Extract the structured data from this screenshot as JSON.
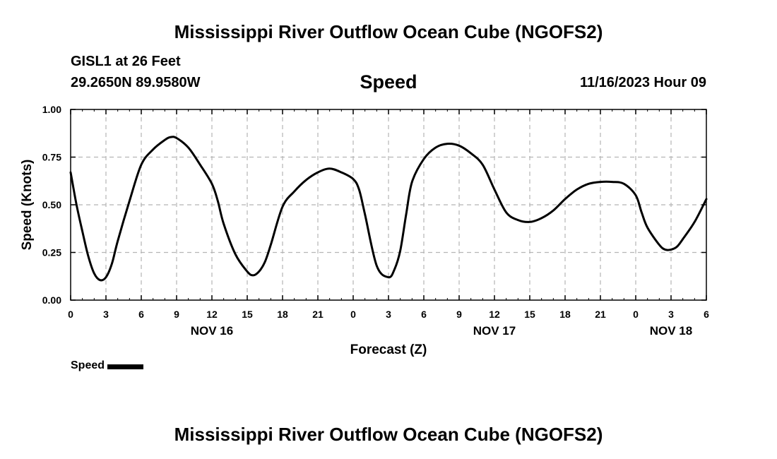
{
  "header": {
    "title": "Mississippi River Outflow Ocean Cube (NGOFS2)",
    "station": "GISL1 at 26 Feet",
    "coordinates": "29.2650N  89.9580W",
    "variable": "Speed",
    "datetime": "11/16/2023 Hour 09"
  },
  "footer": {
    "title": "Mississippi River Outflow Ocean Cube (NGOFS2)"
  },
  "chart_data": {
    "type": "line",
    "title": "Speed",
    "xlabel": "Forecast (Z)",
    "ylabel": "Speed (Knots)",
    "xlim": [
      0,
      54
    ],
    "ylim": [
      0,
      1
    ],
    "grid": true,
    "legend_position": "bottom-left",
    "x_tick_values": [
      0,
      3,
      6,
      9,
      12,
      15,
      18,
      21,
      24,
      27,
      30,
      33,
      36,
      39,
      42,
      45,
      48,
      51,
      54
    ],
    "x_tick_labels": [
      "0",
      "3",
      "6",
      "9",
      "12",
      "15",
      "18",
      "21",
      "0",
      "3",
      "6",
      "9",
      "12",
      "15",
      "18",
      "21",
      "0",
      "3",
      "6"
    ],
    "y_tick_values": [
      0,
      0.25,
      0.5,
      0.75,
      1.0
    ],
    "y_tick_labels": [
      "0.00",
      "0.25",
      "0.50",
      "0.75",
      "1.00"
    ],
    "date_labels": [
      {
        "x": 12,
        "label": "NOV 16"
      },
      {
        "x": 36,
        "label": "NOV 17"
      },
      {
        "x": 51,
        "label": "NOV 18"
      }
    ],
    "series": [
      {
        "name": "Speed",
        "color": "#000000",
        "x": [
          0,
          0.5,
          1,
          1.5,
          2,
          2.5,
          3,
          3.5,
          4,
          5,
          6,
          7,
          8,
          8.5,
          9,
          10,
          11,
          12,
          12.5,
          13,
          14,
          15,
          15.5,
          16,
          16.5,
          17,
          18,
          19,
          20,
          21,
          22,
          23,
          24,
          24.5,
          25,
          26,
          27,
          27.5,
          28,
          28.5,
          29,
          30,
          31,
          32,
          33,
          34,
          35,
          36,
          37,
          38,
          39,
          40,
          41,
          42,
          43,
          44,
          45,
          46,
          47,
          48,
          48.5,
          49,
          50,
          50.5,
          51,
          51.5,
          52,
          53,
          54
        ],
        "y": [
          0.67,
          0.5,
          0.36,
          0.23,
          0.14,
          0.105,
          0.12,
          0.19,
          0.31,
          0.52,
          0.71,
          0.79,
          0.84,
          0.855,
          0.85,
          0.8,
          0.71,
          0.61,
          0.52,
          0.4,
          0.24,
          0.15,
          0.13,
          0.15,
          0.2,
          0.29,
          0.49,
          0.57,
          0.63,
          0.67,
          0.69,
          0.67,
          0.635,
          0.58,
          0.45,
          0.18,
          0.12,
          0.16,
          0.26,
          0.45,
          0.62,
          0.74,
          0.8,
          0.82,
          0.81,
          0.77,
          0.71,
          0.58,
          0.46,
          0.42,
          0.41,
          0.43,
          0.47,
          0.53,
          0.58,
          0.61,
          0.62,
          0.62,
          0.61,
          0.55,
          0.46,
          0.38,
          0.29,
          0.265,
          0.265,
          0.28,
          0.32,
          0.41,
          0.53
        ]
      }
    ]
  }
}
